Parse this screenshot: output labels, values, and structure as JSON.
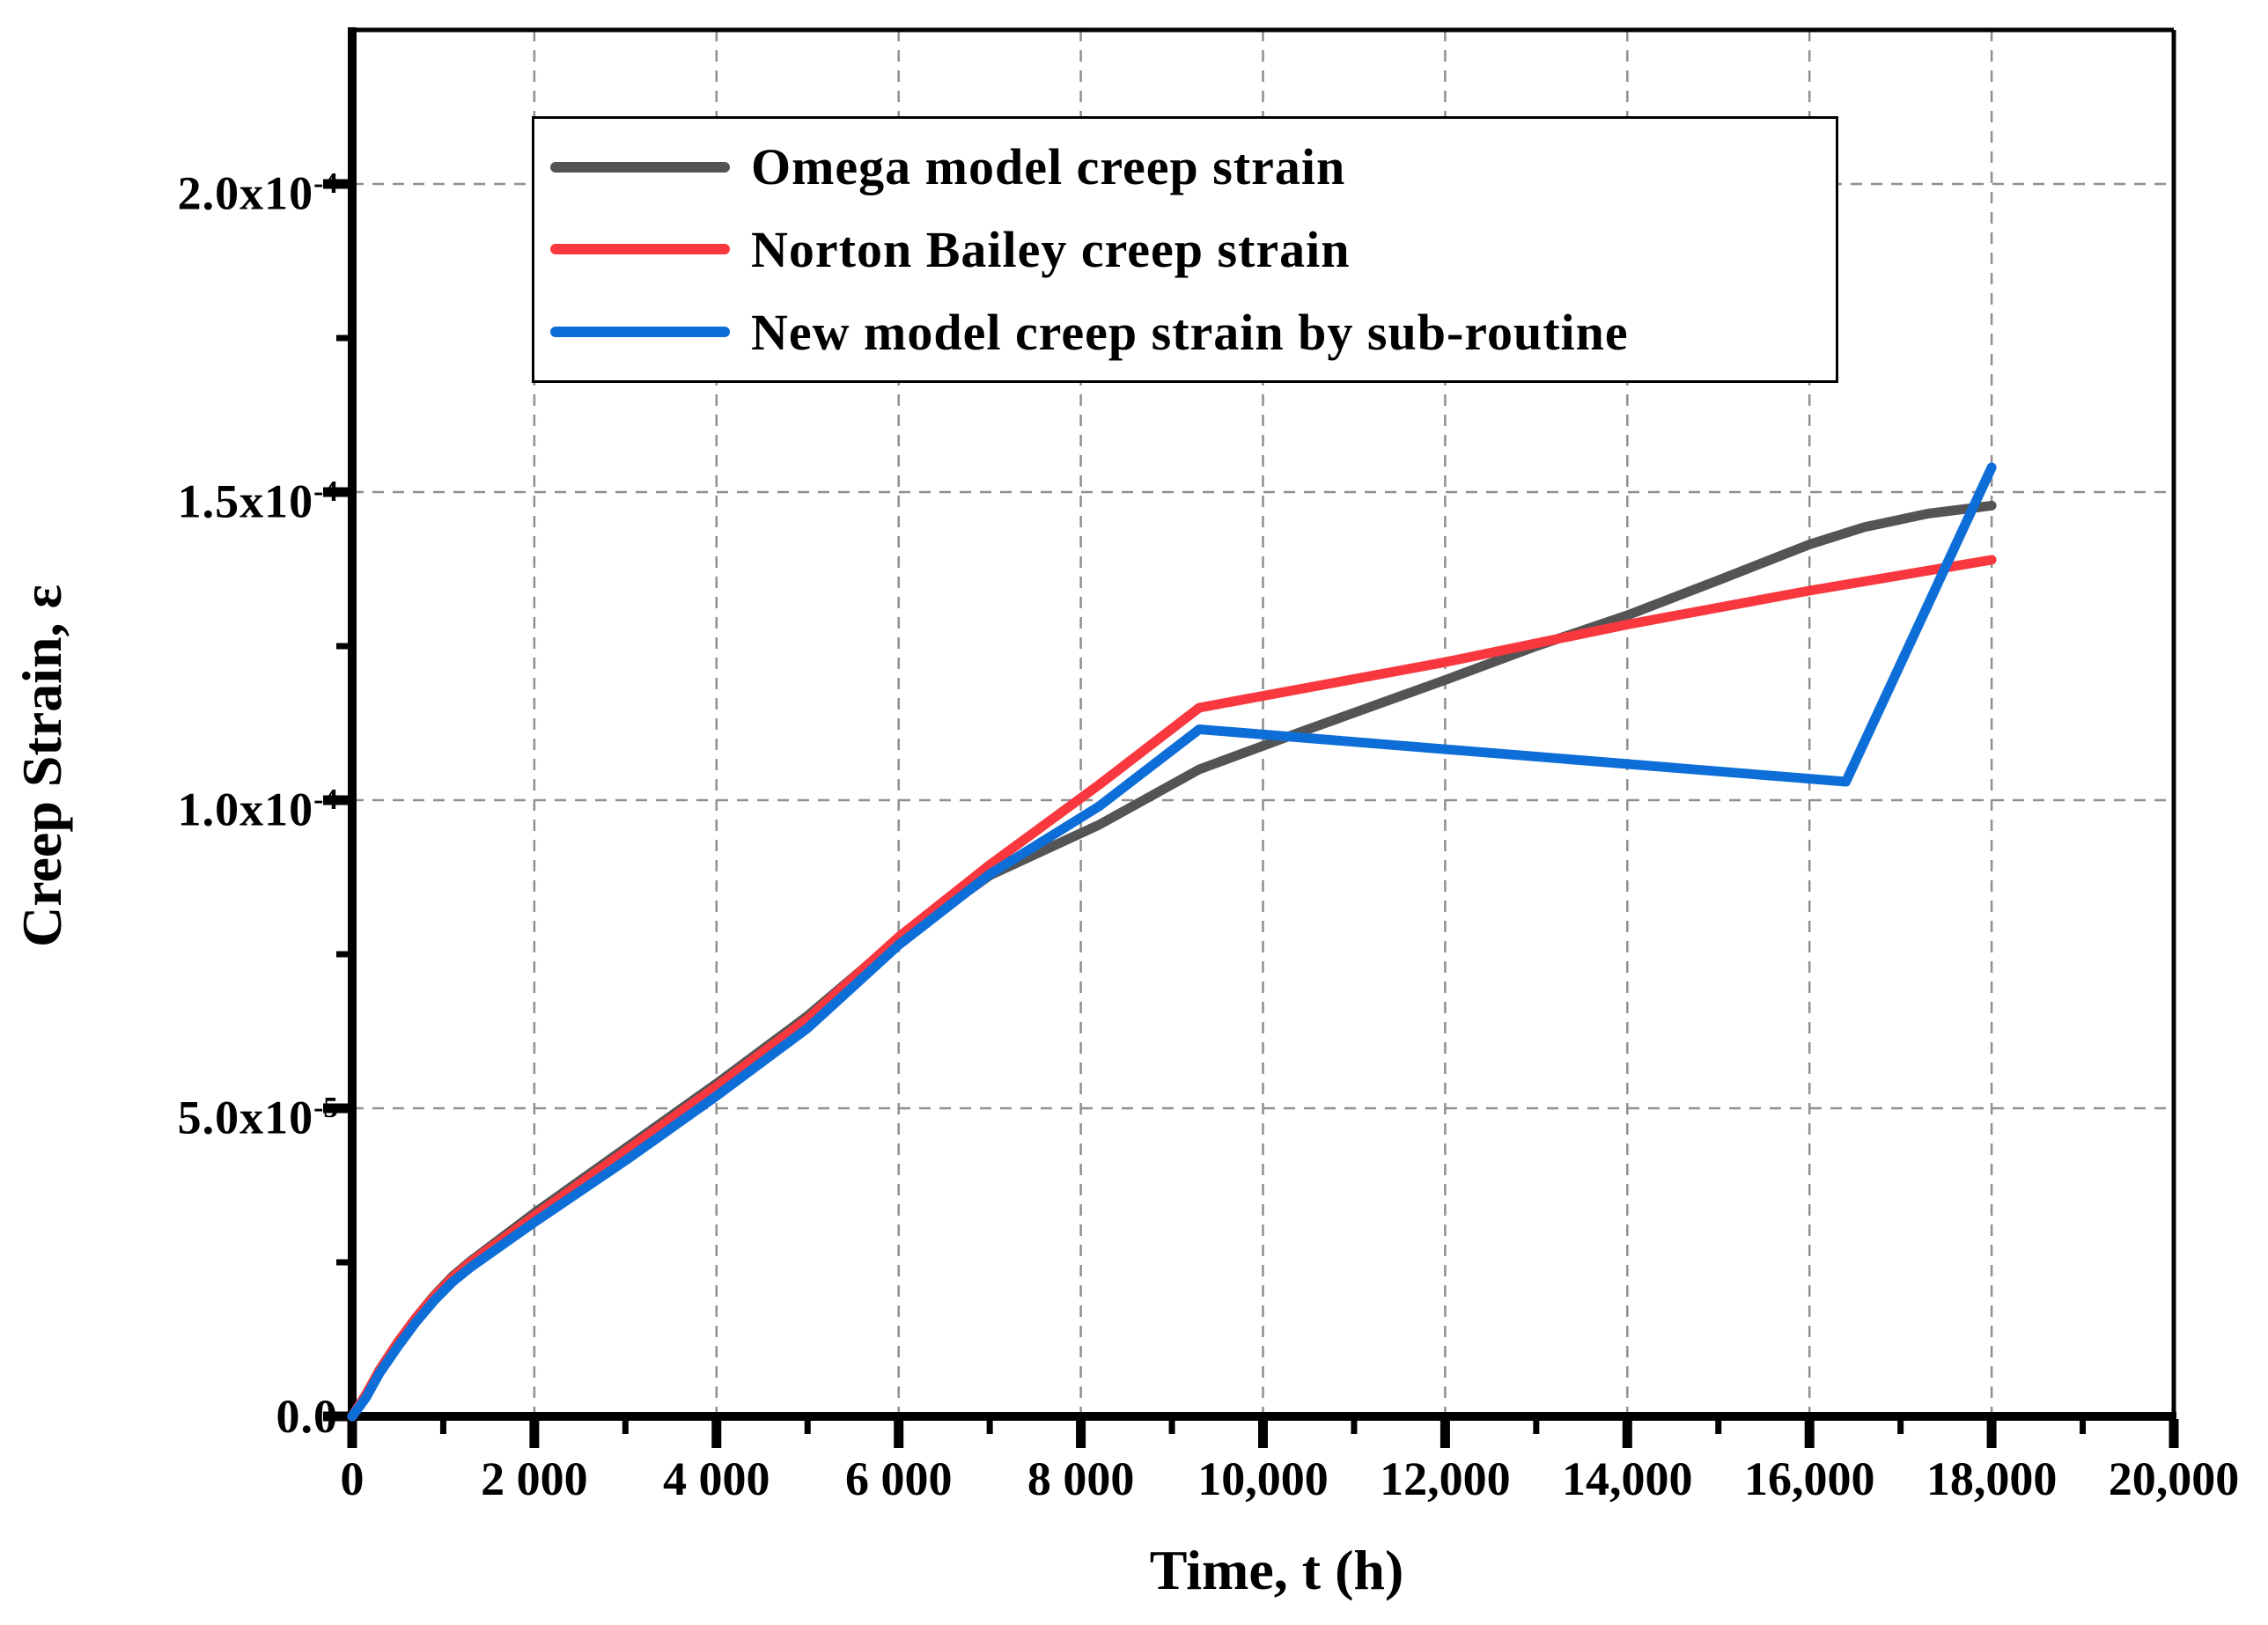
{
  "figure": {
    "background": "#ffffff",
    "kind": "scientific line chart of creep strain versus time"
  },
  "colors": {
    "axis": "#000000",
    "grid": "#8f8f8f",
    "omega": "#545454",
    "norton": "#f8383e",
    "new_model": "#0d6ed8"
  },
  "axes": {
    "x": {
      "title": "Time, t (h)",
      "range": [
        0,
        20000
      ],
      "major_ticks": [
        {
          "value": 0,
          "label": "0"
        },
        {
          "value": 2000,
          "label": "2 000"
        },
        {
          "value": 4000,
          "label": "4 000"
        },
        {
          "value": 6000,
          "label": "6 000"
        },
        {
          "value": 8000,
          "label": "8 000"
        },
        {
          "value": 10000,
          "label": "10,000"
        },
        {
          "value": 12000,
          "label": "12,000"
        },
        {
          "value": 14000,
          "label": "14,000"
        },
        {
          "value": 16000,
          "label": "16,000"
        },
        {
          "value": 18000,
          "label": "18,000"
        },
        {
          "value": 20000,
          "label": "20,000"
        }
      ],
      "minor_tick_values": [
        1000,
        3000,
        5000,
        7000,
        9000,
        11000,
        13000,
        15000,
        17000,
        19000
      ]
    },
    "y": {
      "title": "Creep Strain, ε",
      "range": [
        0,
        0.000225
      ],
      "major_ticks": [
        {
          "value": 0,
          "mantissa": "0.0",
          "exponent": ""
        },
        {
          "value": 5e-05,
          "mantissa": "5.0x10",
          "exponent": "-5"
        },
        {
          "value": 0.0001,
          "mantissa": "1.0x10",
          "exponent": "-4"
        },
        {
          "value": 0.00015,
          "mantissa": "1.5x10",
          "exponent": "-4"
        },
        {
          "value": 0.0002,
          "mantissa": "2.0x10",
          "exponent": "-4"
        }
      ],
      "minor_tick_values": [
        2.5e-05,
        7.5e-05,
        0.000125,
        0.000175
      ]
    }
  },
  "legend": {
    "items": [
      {
        "label": "Omega model creep strain",
        "color": "#545454"
      },
      {
        "label": "Norton Bailey creep strain",
        "color": "#f8383e"
      },
      {
        "label": "New model creep strain by sub-routine",
        "color": "#0d6ed8"
      }
    ]
  },
  "chart_data": {
    "type": "line",
    "title": "",
    "xlabel": "Time, t (h)",
    "ylabel": "Creep Strain, ε",
    "xlim": [
      0,
      20000
    ],
    "ylim": [
      0,
      0.000225
    ],
    "grid": true,
    "grid_style": "dashed",
    "legend_position": "top-inside",
    "series": [
      {
        "name": "Omega model creep strain",
        "color": "#545454",
        "points": [
          [
            0,
            0
          ],
          [
            150,
            3.5e-06
          ],
          [
            300,
            7.5e-06
          ],
          [
            500,
            1.2e-05
          ],
          [
            700,
            1.6e-05
          ],
          [
            900,
            1.96e-05
          ],
          [
            1100,
            2.27e-05
          ],
          [
            1300,
            2.52e-05
          ],
          [
            2000,
            3.3e-05
          ],
          [
            3000,
            4.35e-05
          ],
          [
            4000,
            5.4e-05
          ],
          [
            5000,
            6.5e-05
          ],
          [
            5800,
            7.5e-05
          ],
          [
            7000,
            8.78e-05
          ],
          [
            8200,
            9.6e-05
          ],
          [
            9300,
            0.000105
          ],
          [
            10400,
            0.000111
          ],
          [
            12000,
            0.0001195
          ],
          [
            13000,
            0.000125
          ],
          [
            14000,
            0.00013
          ],
          [
            15000,
            0.0001357
          ],
          [
            16000,
            0.0001415
          ],
          [
            16600,
            0.0001443
          ],
          [
            17300,
            0.0001465
          ],
          [
            18000,
            0.0001478
          ]
        ]
      },
      {
        "name": "Norton Bailey creep strain",
        "color": "#f8383e",
        "points": [
          [
            0,
            0
          ],
          [
            150,
            3.5e-06
          ],
          [
            300,
            7.5e-06
          ],
          [
            500,
            1.2e-05
          ],
          [
            700,
            1.6e-05
          ],
          [
            900,
            1.95e-05
          ],
          [
            1100,
            2.25e-05
          ],
          [
            1300,
            2.5e-05
          ],
          [
            2000,
            3.25e-05
          ],
          [
            3000,
            4.3e-05
          ],
          [
            4000,
            5.35e-05
          ],
          [
            5000,
            6.45e-05
          ],
          [
            6000,
            7.78e-05
          ],
          [
            7000,
            8.95e-05
          ],
          [
            8200,
            0.0001025
          ],
          [
            9300,
            0.000115
          ],
          [
            12000,
            0.0001224
          ],
          [
            14000,
            0.0001285
          ],
          [
            16000,
            0.000134
          ],
          [
            18000,
            0.000139
          ]
        ]
      },
      {
        "name": "New model creep strain by sub-routine",
        "color": "#0d6ed8",
        "points": [
          [
            0,
            0
          ],
          [
            150,
            3e-06
          ],
          [
            300,
            7e-06
          ],
          [
            500,
            1.13e-05
          ],
          [
            700,
            1.53e-05
          ],
          [
            900,
            1.88e-05
          ],
          [
            1100,
            2.18e-05
          ],
          [
            1300,
            2.42e-05
          ],
          [
            2000,
            3.15e-05
          ],
          [
            3000,
            4.15e-05
          ],
          [
            4000,
            5.2e-05
          ],
          [
            5000,
            6.3e-05
          ],
          [
            6000,
            7.65e-05
          ],
          [
            7000,
            8.8e-05
          ],
          [
            8200,
            9.9e-05
          ],
          [
            9300,
            0.0001115
          ],
          [
            16400,
            0.000103
          ],
          [
            18000,
            0.000154
          ]
        ]
      }
    ]
  }
}
